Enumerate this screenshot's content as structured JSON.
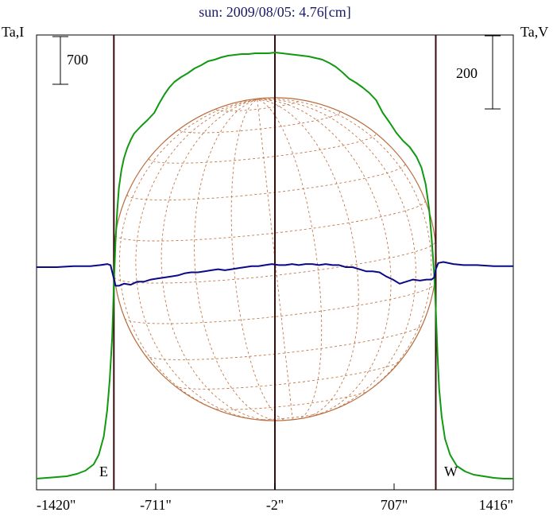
{
  "chart_data": {
    "type": "line",
    "title": "sun: 2009/08/05: 4.76[cm]",
    "ylabel_left": "Ta,I",
    "ylabel_right": "Ta,V",
    "scale_bar_left": "700",
    "scale_bar_right": "200",
    "limb_labels": {
      "east": "E",
      "west": "W"
    },
    "x_ticks": [
      {
        "value": -1420,
        "label": "-1420\""
      },
      {
        "value": -711,
        "label": "-711\""
      },
      {
        "value": -2,
        "label": "-2\""
      },
      {
        "value": 707,
        "label": "707\""
      },
      {
        "value": 1416,
        "label": "1416\""
      }
    ],
    "xlim": [
      -1420,
      1416
    ],
    "vertical_markers": [
      -960,
      -2,
      955
    ],
    "solar_disk": {
      "center_x": -2,
      "radius": 960
    },
    "colors": {
      "intensity": "#119911",
      "polarization": "#0a0a88",
      "markers": "#3a0c0c",
      "disk": "#b86a3a",
      "grid": "#c4784a",
      "axes": "#000000",
      "title": "#1a1a6a"
    },
    "series": [
      {
        "key": "intensity",
        "points": [
          [
            -1420,
            2
          ],
          [
            -1360,
            3
          ],
          [
            -1300,
            4
          ],
          [
            -1240,
            5
          ],
          [
            -1180,
            8
          ],
          [
            -1130,
            12
          ],
          [
            -1080,
            20
          ],
          [
            -1050,
            32
          ],
          [
            -1020,
            55
          ],
          [
            -1000,
            88
          ],
          [
            -985,
            125
          ],
          [
            -970,
            180
          ],
          [
            -960,
            245
          ],
          [
            -950,
            300
          ],
          [
            -940,
            340
          ],
          [
            -930,
            368
          ],
          [
            -915,
            390
          ],
          [
            -900,
            405
          ],
          [
            -880,
            418
          ],
          [
            -860,
            428
          ],
          [
            -840,
            436
          ],
          [
            -800,
            445
          ],
          [
            -760,
            453
          ],
          [
            -720,
            462
          ],
          [
            -690,
            474
          ],
          [
            -660,
            485
          ],
          [
            -630,
            494
          ],
          [
            -600,
            501
          ],
          [
            -560,
            507
          ],
          [
            -520,
            512
          ],
          [
            -480,
            518
          ],
          [
            -440,
            522
          ],
          [
            -400,
            527
          ],
          [
            -360,
            529
          ],
          [
            -320,
            532
          ],
          [
            -280,
            534
          ],
          [
            -240,
            535
          ],
          [
            -200,
            536
          ],
          [
            -160,
            536
          ],
          [
            -120,
            537
          ],
          [
            -80,
            537
          ],
          [
            -40,
            537
          ],
          [
            0,
            538
          ],
          [
            40,
            537
          ],
          [
            80,
            536
          ],
          [
            120,
            535
          ],
          [
            160,
            534
          ],
          [
            200,
            533
          ],
          [
            240,
            531
          ],
          [
            280,
            529
          ],
          [
            320,
            525
          ],
          [
            360,
            520
          ],
          [
            400,
            513
          ],
          [
            440,
            505
          ],
          [
            480,
            500
          ],
          [
            520,
            494
          ],
          [
            560,
            487
          ],
          [
            600,
            478
          ],
          [
            640,
            462
          ],
          [
            680,
            450
          ],
          [
            720,
            437
          ],
          [
            760,
            427
          ],
          [
            800,
            419
          ],
          [
            840,
            407
          ],
          [
            870,
            393
          ],
          [
            895,
            372
          ],
          [
            915,
            342
          ],
          [
            930,
            305
          ],
          [
            945,
            260
          ],
          [
            955,
            215
          ],
          [
            965,
            160
          ],
          [
            975,
            115
          ],
          [
            990,
            80
          ],
          [
            1010,
            52
          ],
          [
            1040,
            32
          ],
          [
            1080,
            18
          ],
          [
            1130,
            11
          ],
          [
            1180,
            7
          ],
          [
            1240,
            5
          ],
          [
            1300,
            3
          ],
          [
            1360,
            2
          ],
          [
            1416,
            2
          ]
        ]
      },
      {
        "key": "polarization",
        "points": [
          [
            -1420,
            270
          ],
          [
            -1300,
            270
          ],
          [
            -1200,
            271
          ],
          [
            -1100,
            271
          ],
          [
            -1040,
            272
          ],
          [
            -1000,
            273
          ],
          [
            -980,
            272
          ],
          [
            -965,
            262
          ],
          [
            -950,
            252
          ],
          [
            -930,
            252
          ],
          [
            -900,
            254
          ],
          [
            -860,
            253
          ],
          [
            -820,
            256
          ],
          [
            -780,
            256
          ],
          [
            -740,
            258
          ],
          [
            -700,
            259
          ],
          [
            -660,
            260
          ],
          [
            -620,
            261
          ],
          [
            -580,
            262
          ],
          [
            -540,
            264
          ],
          [
            -500,
            265
          ],
          [
            -460,
            265
          ],
          [
            -420,
            266
          ],
          [
            -380,
            267
          ],
          [
            -340,
            268
          ],
          [
            -300,
            267
          ],
          [
            -260,
            268
          ],
          [
            -220,
            269
          ],
          [
            -180,
            270
          ],
          [
            -140,
            271
          ],
          [
            -100,
            271
          ],
          [
            -60,
            272
          ],
          [
            -20,
            273
          ],
          [
            20,
            272
          ],
          [
            60,
            272
          ],
          [
            100,
            273
          ],
          [
            140,
            272
          ],
          [
            180,
            273
          ],
          [
            220,
            273
          ],
          [
            260,
            272
          ],
          [
            300,
            273
          ],
          [
            340,
            272
          ],
          [
            380,
            272
          ],
          [
            420,
            270
          ],
          [
            460,
            270
          ],
          [
            500,
            268
          ],
          [
            540,
            266
          ],
          [
            580,
            266
          ],
          [
            620,
            265
          ],
          [
            660,
            261
          ],
          [
            700,
            258
          ],
          [
            740,
            254
          ],
          [
            780,
            256
          ],
          [
            820,
            258
          ],
          [
            860,
            257
          ],
          [
            900,
            258
          ],
          [
            930,
            258
          ],
          [
            945,
            260
          ],
          [
            955,
            268
          ],
          [
            970,
            274
          ],
          [
            1000,
            275
          ],
          [
            1060,
            273
          ],
          [
            1120,
            272
          ],
          [
            1200,
            272
          ],
          [
            1300,
            271
          ],
          [
            1416,
            271
          ]
        ]
      }
    ]
  }
}
